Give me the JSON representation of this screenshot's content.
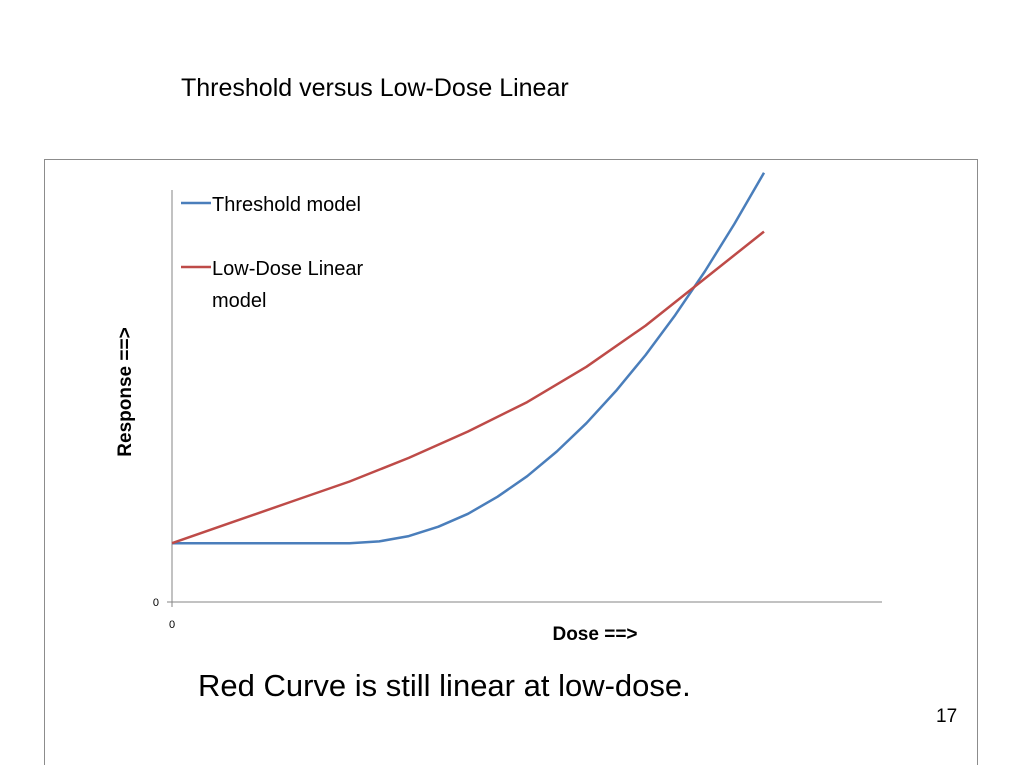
{
  "slide": {
    "title": "Threshold versus Low-Dose Linear",
    "caption": "Red Curve is still linear at low-dose.",
    "page_number": "17"
  },
  "colors": {
    "threshold": "#4a7ebb",
    "linear": "#be4b48",
    "axis": "#868686"
  },
  "chart_data": {
    "type": "line",
    "xlabel": "Dose ==>",
    "ylabel": "Response ==>",
    "x_tick_labels": [
      "0"
    ],
    "y_tick_labels": [
      "0"
    ],
    "xlim": [
      0,
      12
    ],
    "ylim": [
      0,
      10
    ],
    "legend_position": "top-left",
    "series": [
      {
        "name": "Threshold model",
        "color": "#4a7ebb",
        "x": [
          0,
          1,
          2,
          3,
          3.5,
          4,
          4.5,
          5,
          5.5,
          6,
          6.5,
          7,
          7.5,
          8,
          8.5,
          9,
          9.5,
          10
        ],
        "y": [
          1,
          1,
          1,
          1,
          1.03,
          1.12,
          1.28,
          1.5,
          1.79,
          2.14,
          2.56,
          3.04,
          3.59,
          4.2,
          4.88,
          5.62,
          6.43,
          7.3
        ]
      },
      {
        "name": "Low-Dose Linear\nmodel",
        "color": "#be4b48",
        "x": [
          0,
          1,
          2,
          3,
          4,
          5,
          6,
          7,
          8,
          9,
          10
        ],
        "y": [
          1,
          1.35,
          1.7,
          2.05,
          2.45,
          2.9,
          3.4,
          4.0,
          4.7,
          5.5,
          6.3
        ]
      }
    ]
  }
}
